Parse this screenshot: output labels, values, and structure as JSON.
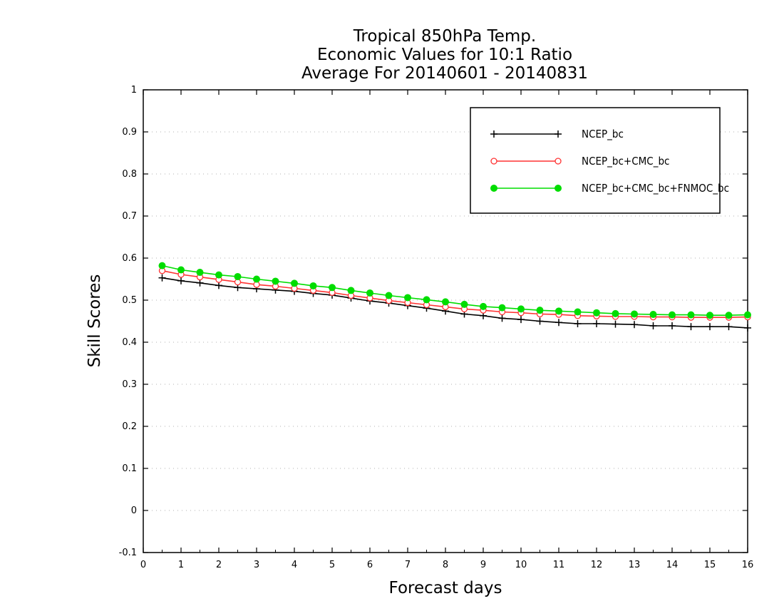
{
  "chart_data": {
    "type": "line",
    "title_lines": [
      "Tropical 850hPa Temp.",
      "Economic Values for 10:1 Ratio",
      "Average For 20140601 - 20140831"
    ],
    "xlabel": "Forecast days",
    "ylabel": "Skill Scores",
    "xlim": [
      0,
      16
    ],
    "ylim": [
      -0.1,
      1
    ],
    "x_ticks": [
      0,
      1,
      2,
      3,
      4,
      5,
      6,
      7,
      8,
      9,
      10,
      11,
      12,
      13,
      14,
      15,
      16
    ],
    "y_ticks": [
      -0.1,
      0,
      0.1,
      0.2,
      0.3,
      0.4,
      0.5,
      0.6,
      0.7,
      0.8,
      0.9,
      1
    ],
    "y_tick_labels": [
      "-0.1",
      "0",
      "0.1",
      "0.2",
      "0.3",
      "0.4",
      "0.5",
      "0.6",
      "0.7",
      "0.8",
      "0.9",
      "1"
    ],
    "grid": "horizontal dotted",
    "legend_position": "top-right",
    "x": [
      0.5,
      1,
      1.5,
      2,
      2.5,
      3,
      3.5,
      4,
      4.5,
      5,
      5.5,
      6,
      6.5,
      7,
      7.5,
      8,
      8.5,
      9,
      9.5,
      10,
      10.5,
      11,
      11.5,
      12,
      12.5,
      13,
      13.5,
      14,
      14.5,
      15,
      15.5,
      16
    ],
    "series": [
      {
        "name": "NCEP_bc",
        "color": "#000000",
        "marker": "plus",
        "values": [
          0.553,
          0.546,
          0.541,
          0.535,
          0.53,
          0.527,
          0.524,
          0.521,
          0.516,
          0.512,
          0.505,
          0.498,
          0.493,
          0.487,
          0.481,
          0.474,
          0.467,
          0.463,
          0.457,
          0.454,
          0.45,
          0.447,
          0.444,
          0.444,
          0.443,
          0.442,
          0.439,
          0.439,
          0.437,
          0.437,
          0.437,
          0.434
        ]
      },
      {
        "name": "NCEP_bc+CMC_bc",
        "color": "#ff3333",
        "marker": "open-circle",
        "values": [
          0.57,
          0.561,
          0.555,
          0.549,
          0.543,
          0.537,
          0.533,
          0.528,
          0.523,
          0.518,
          0.511,
          0.505,
          0.499,
          0.494,
          0.489,
          0.484,
          0.479,
          0.476,
          0.472,
          0.47,
          0.467,
          0.466,
          0.463,
          0.462,
          0.461,
          0.461,
          0.46,
          0.46,
          0.459,
          0.459,
          0.459,
          0.46
        ]
      },
      {
        "name": "NCEP_bc+CMC_bc+FNMOC_bc",
        "color": "#00dd00",
        "marker": "filled-circle",
        "values": [
          0.582,
          0.572,
          0.566,
          0.56,
          0.556,
          0.55,
          0.545,
          0.54,
          0.534,
          0.53,
          0.523,
          0.517,
          0.511,
          0.506,
          0.501,
          0.496,
          0.49,
          0.485,
          0.482,
          0.479,
          0.476,
          0.474,
          0.472,
          0.47,
          0.468,
          0.467,
          0.466,
          0.465,
          0.465,
          0.464,
          0.464,
          0.465
        ]
      }
    ]
  }
}
